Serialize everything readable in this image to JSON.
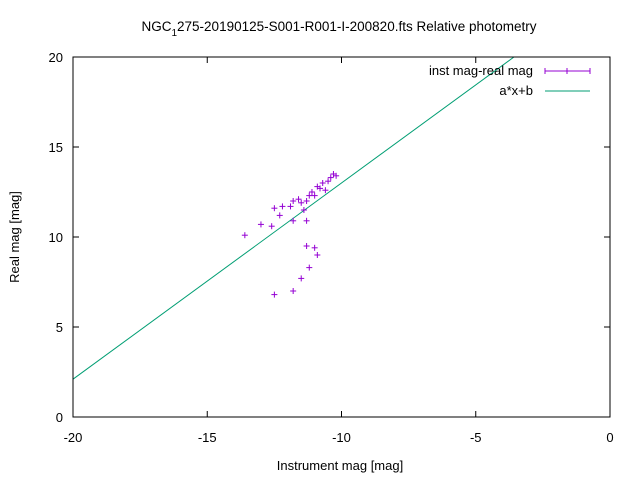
{
  "chart_data": {
    "type": "scatter",
    "title_parts": {
      "pre": "NGC",
      "sub": "1",
      "post": "275-20190125-S001-R001-I-200820.fts Relative photometry"
    },
    "xlabel": "Instrument mag [mag]",
    "ylabel": "Real mag [mag]",
    "xlim": [
      -20,
      0
    ],
    "ylim": [
      0,
      20
    ],
    "xticks": [
      -20,
      -15,
      -10,
      -5,
      0
    ],
    "yticks": [
      0,
      5,
      10,
      15,
      20
    ],
    "grid": false,
    "legend_position": "top-right",
    "series": [
      {
        "name": "inst mag-real mag",
        "kind": "points-errorbars",
        "color": "#9400d3",
        "points": [
          {
            "x": -13.6,
            "y": 10.1
          },
          {
            "x": -13.0,
            "y": 10.7
          },
          {
            "x": -12.6,
            "y": 10.6
          },
          {
            "x": -12.3,
            "y": 11.2
          },
          {
            "x": -12.5,
            "y": 11.6
          },
          {
            "x": -12.2,
            "y": 11.7
          },
          {
            "x": -11.9,
            "y": 11.7
          },
          {
            "x": -11.8,
            "y": 12.0
          },
          {
            "x": -11.6,
            "y": 12.1
          },
          {
            "x": -11.5,
            "y": 11.9
          },
          {
            "x": -11.4,
            "y": 11.5
          },
          {
            "x": -11.3,
            "y": 12.0
          },
          {
            "x": -11.2,
            "y": 12.3
          },
          {
            "x": -11.1,
            "y": 12.5
          },
          {
            "x": -11.0,
            "y": 12.3
          },
          {
            "x": -10.9,
            "y": 12.8
          },
          {
            "x": -10.8,
            "y": 12.7
          },
          {
            "x": -10.7,
            "y": 13.0
          },
          {
            "x": -10.6,
            "y": 12.6
          },
          {
            "x": -10.5,
            "y": 13.1
          },
          {
            "x": -10.4,
            "y": 13.3
          },
          {
            "x": -10.3,
            "y": 13.5
          },
          {
            "x": -10.2,
            "y": 13.4
          },
          {
            "x": -11.8,
            "y": 10.9
          },
          {
            "x": -11.3,
            "y": 10.9
          },
          {
            "x": -11.3,
            "y": 9.5
          },
          {
            "x": -11.0,
            "y": 9.4
          },
          {
            "x": -10.9,
            "y": 9.0
          },
          {
            "x": -11.2,
            "y": 8.3
          },
          {
            "x": -11.5,
            "y": 7.7
          },
          {
            "x": -11.8,
            "y": 7.0
          },
          {
            "x": -12.5,
            "y": 6.8
          }
        ]
      },
      {
        "name": "a*x+b",
        "kind": "line",
        "color": "#009e73",
        "slope": 1.09,
        "intercept": 23.9
      }
    ]
  }
}
